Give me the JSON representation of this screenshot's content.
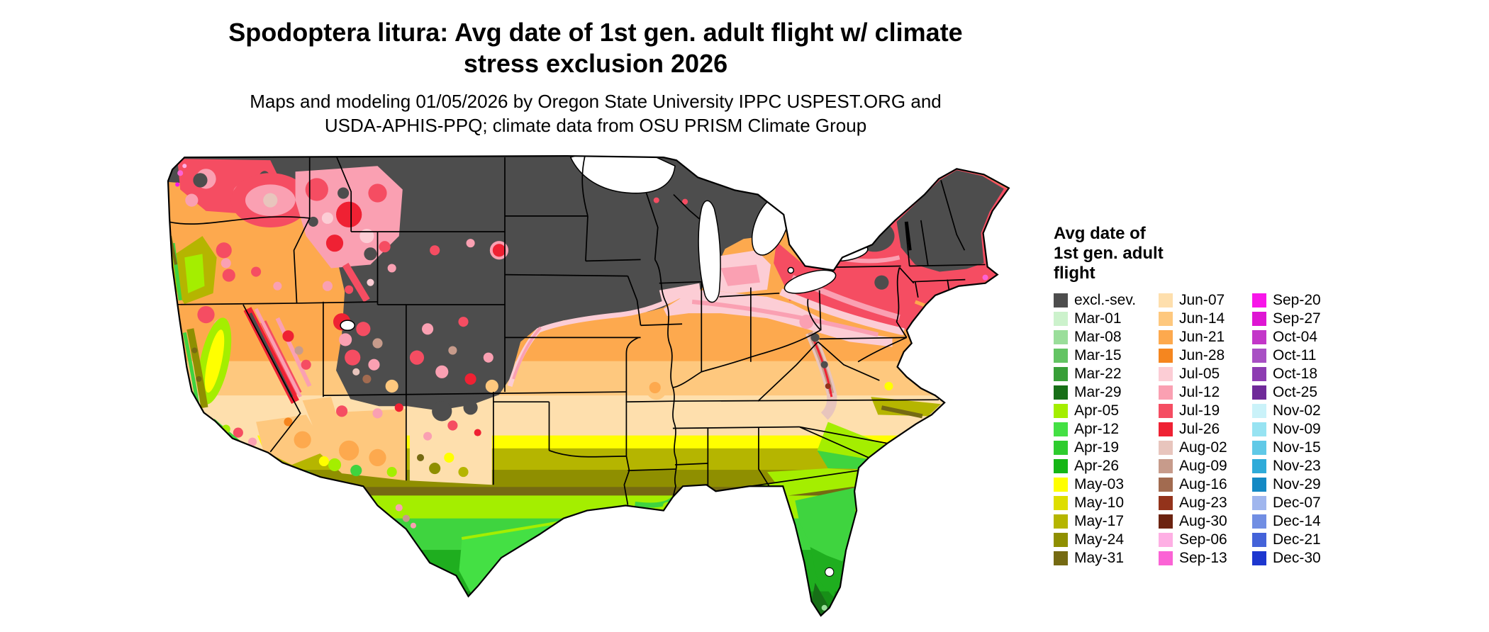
{
  "title": {
    "line1": "Spodoptera litura: Avg date of 1st gen. adult flight w/ climate",
    "line2": "stress exclusion 2026"
  },
  "subtitle": {
    "line1": "Maps and modeling 01/05/2026 by Oregon State University IPPC USPEST.ORG and",
    "line2": "USDA-APHIS-PPQ; climate data from OSU PRISM Climate Group"
  },
  "map": {
    "region": "Contiguous United States",
    "kind": "choropleth raster of average date of first generation adult flight",
    "excluded_color": "#4d4d4d"
  },
  "legend": {
    "title_lines": [
      "Avg date of",
      "1st gen. adult",
      "flight"
    ],
    "columns": [
      {
        "entries": [
          {
            "label": "excl.-sev.",
            "color": "#4d4d4d"
          },
          {
            "label": "Mar-01",
            "color": "#ccf2cc"
          },
          {
            "label": "Mar-08",
            "color": "#9ade9a"
          },
          {
            "label": "Mar-15",
            "color": "#63c463"
          },
          {
            "label": "Mar-22",
            "color": "#389f38"
          },
          {
            "label": "Mar-29",
            "color": "#176f17"
          },
          {
            "label": "Apr-05",
            "color": "#a4ee00"
          },
          {
            "label": "Apr-12",
            "color": "#44e044"
          },
          {
            "label": "Apr-19",
            "color": "#2ecc2e"
          },
          {
            "label": "Apr-26",
            "color": "#15b615"
          },
          {
            "label": "May-03",
            "color": "#ffff00"
          },
          {
            "label": "May-10",
            "color": "#dede00"
          },
          {
            "label": "May-17",
            "color": "#b5b500"
          },
          {
            "label": "May-24",
            "color": "#8f8f00"
          },
          {
            "label": "May-31",
            "color": "#756a12"
          }
        ]
      },
      {
        "entries": [
          {
            "label": "Jun-07",
            "color": "#fedfad"
          },
          {
            "label": "Jun-14",
            "color": "#fec87e"
          },
          {
            "label": "Jun-21",
            "color": "#fda94e"
          },
          {
            "label": "Jun-28",
            "color": "#f5861f"
          },
          {
            "label": "Jul-05",
            "color": "#fccdd5"
          },
          {
            "label": "Jul-12",
            "color": "#faa0b2"
          },
          {
            "label": "Jul-19",
            "color": "#f54d62"
          },
          {
            "label": "Jul-26",
            "color": "#ef2133"
          },
          {
            "label": "Aug-02",
            "color": "#e8c5bd"
          },
          {
            "label": "Aug-09",
            "color": "#c79b8b"
          },
          {
            "label": "Aug-16",
            "color": "#a26b50"
          },
          {
            "label": "Aug-23",
            "color": "#93331b"
          },
          {
            "label": "Aug-30",
            "color": "#6c2310"
          },
          {
            "label": "Sep-06",
            "color": "#feafe4"
          },
          {
            "label": "Sep-13",
            "color": "#fb63d5"
          }
        ]
      },
      {
        "entries": [
          {
            "label": "Sep-20",
            "color": "#f816e9"
          },
          {
            "label": "Sep-27",
            "color": "#de16d3"
          },
          {
            "label": "Oct-04",
            "color": "#c337c9"
          },
          {
            "label": "Oct-11",
            "color": "#a850c4"
          },
          {
            "label": "Oct-18",
            "color": "#8d3cb2"
          },
          {
            "label": "Oct-25",
            "color": "#6f2a99"
          },
          {
            "label": "Nov-02",
            "color": "#caf2f9"
          },
          {
            "label": "Nov-09",
            "color": "#97e3f2"
          },
          {
            "label": "Nov-15",
            "color": "#60c9e7"
          },
          {
            "label": "Nov-23",
            "color": "#2fabd9"
          },
          {
            "label": "Nov-29",
            "color": "#1489c4"
          },
          {
            "label": "Dec-07",
            "color": "#a0b6ee"
          },
          {
            "label": "Dec-14",
            "color": "#718ee3"
          },
          {
            "label": "Dec-21",
            "color": "#4463d9"
          },
          {
            "label": "Dec-30",
            "color": "#1d37cf"
          }
        ]
      }
    ]
  }
}
